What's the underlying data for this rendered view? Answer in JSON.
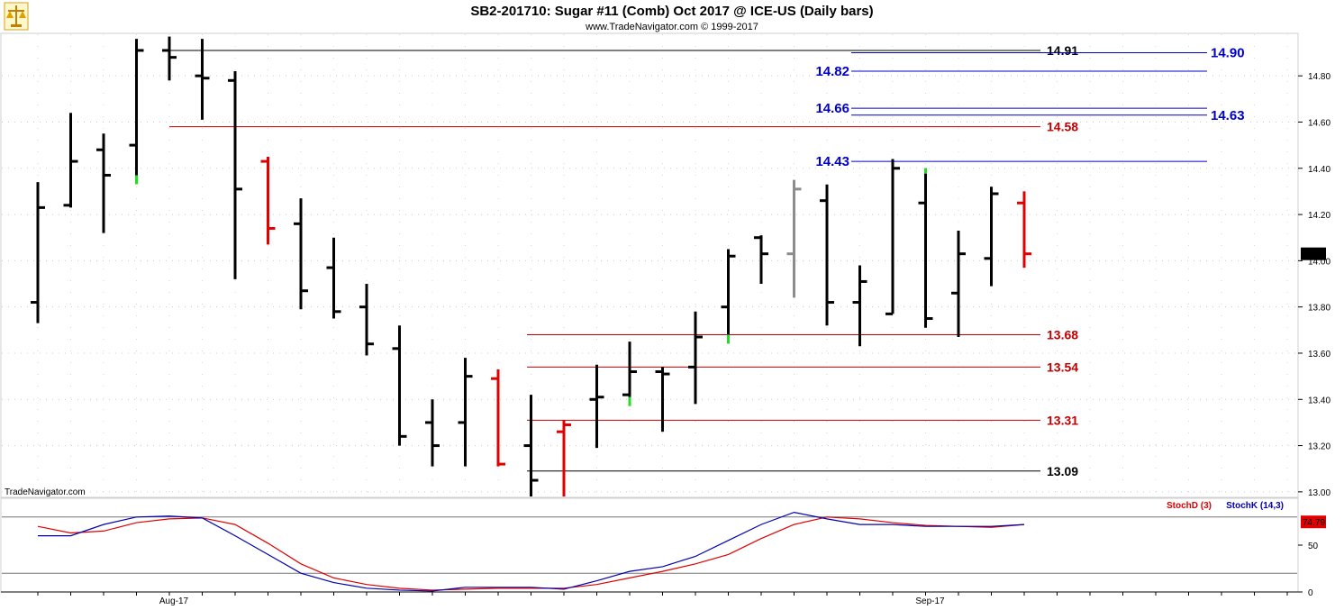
{
  "header": {
    "title": "SB2-201710:  Sugar #11 (Comb) Oct 2017 @ ICE-US  (Daily bars)",
    "subtitle": "www.TradeNavigator.com © 1999-2017",
    "watermark": "TradeNavigator.com",
    "logo_icon": "scale-icon"
  },
  "colors": {
    "bar_up": "#000000",
    "bar_down": "#e00000",
    "bar_gray": "#8c8c8c",
    "tick_green": "#22dd22",
    "level_black": "#000000",
    "level_red": "#c00000",
    "level_blue": "#0000cc",
    "stoch_d": "#e00000",
    "stoch_k": "#0000b0"
  },
  "chart_data": {
    "type": "ohlc",
    "x_axis": {
      "labels": [
        "Aug-17",
        "Sep-17"
      ],
      "label_bar_index": [
        4,
        27
      ]
    },
    "y_axis": {
      "ylim": [
        12.98,
        14.98
      ],
      "ticks": [
        "14.80",
        "14.60",
        "14.40",
        "14.20",
        "14.00",
        "13.80",
        "13.60",
        "13.40",
        "13.20",
        "13.00"
      ]
    },
    "last_price_label": "14.03",
    "bars": [
      {
        "o": 13.82,
        "h": 14.34,
        "l": 13.73,
        "c": 14.23,
        "color": "black"
      },
      {
        "o": 14.24,
        "h": 14.64,
        "l": 14.23,
        "c": 14.43,
        "color": "black"
      },
      {
        "o": 14.48,
        "h": 14.55,
        "l": 14.12,
        "c": 14.37,
        "color": "black"
      },
      {
        "o": 14.5,
        "h": 14.96,
        "l": 14.37,
        "c": 14.91,
        "color": "black",
        "green_low": true
      },
      {
        "o": 14.91,
        "h": 14.97,
        "l": 14.78,
        "c": 14.88,
        "color": "black"
      },
      {
        "o": 14.8,
        "h": 14.96,
        "l": 14.61,
        "c": 14.79,
        "color": "black"
      },
      {
        "o": 14.78,
        "h": 14.82,
        "l": 13.92,
        "c": 14.31,
        "color": "black"
      },
      {
        "o": 14.43,
        "h": 14.45,
        "l": 14.07,
        "c": 14.14,
        "color": "red"
      },
      {
        "o": 14.16,
        "h": 14.27,
        "l": 13.79,
        "c": 13.87,
        "color": "black"
      },
      {
        "o": 13.97,
        "h": 14.1,
        "l": 13.75,
        "c": 13.78,
        "color": "black"
      },
      {
        "o": 13.8,
        "h": 13.9,
        "l": 13.59,
        "c": 13.64,
        "color": "black"
      },
      {
        "o": 13.62,
        "h": 13.72,
        "l": 13.2,
        "c": 13.24,
        "color": "black"
      },
      {
        "o": 13.3,
        "h": 13.4,
        "l": 13.11,
        "c": 13.2,
        "color": "black"
      },
      {
        "o": 13.3,
        "h": 13.58,
        "l": 13.11,
        "c": 13.5,
        "color": "black"
      },
      {
        "o": 13.49,
        "h": 13.53,
        "l": 13.11,
        "c": 13.12,
        "color": "red"
      },
      {
        "o": 13.2,
        "h": 13.42,
        "l": 12.98,
        "c": 13.05,
        "color": "black"
      },
      {
        "o": 13.26,
        "h": 13.31,
        "l": 12.98,
        "c": 13.29,
        "color": "red"
      },
      {
        "o": 13.4,
        "h": 13.55,
        "l": 13.19,
        "c": 13.41,
        "color": "black"
      },
      {
        "o": 13.42,
        "h": 13.65,
        "l": 13.41,
        "c": 13.52,
        "color": "black",
        "green_low": true
      },
      {
        "o": 13.52,
        "h": 13.54,
        "l": 13.26,
        "c": 13.51,
        "color": "black"
      },
      {
        "o": 13.54,
        "h": 13.78,
        "l": 13.38,
        "c": 13.67,
        "color": "black"
      },
      {
        "o": 13.8,
        "h": 14.05,
        "l": 13.68,
        "c": 14.02,
        "color": "black",
        "green_low": true
      },
      {
        "o": 14.1,
        "h": 14.11,
        "l": 13.9,
        "c": 14.03,
        "color": "black"
      },
      {
        "o": 14.03,
        "h": 14.35,
        "l": 13.84,
        "c": 14.31,
        "color": "gray"
      },
      {
        "o": 14.26,
        "h": 14.33,
        "l": 13.72,
        "c": 13.82,
        "color": "black"
      },
      {
        "o": 13.82,
        "h": 13.98,
        "l": 13.63,
        "c": 13.91,
        "color": "black"
      },
      {
        "o": 13.77,
        "h": 14.44,
        "l": 13.77,
        "c": 14.4,
        "color": "black"
      },
      {
        "o": 14.25,
        "h": 14.4,
        "l": 13.71,
        "c": 13.75,
        "color": "black",
        "green_high": true
      },
      {
        "o": 13.86,
        "h": 14.13,
        "l": 13.67,
        "c": 14.03,
        "color": "black"
      },
      {
        "o": 14.01,
        "h": 14.32,
        "l": 13.89,
        "c": 14.29,
        "color": "black"
      },
      {
        "o": 14.25,
        "h": 14.3,
        "l": 13.97,
        "c": 14.03,
        "color": "red"
      }
    ],
    "levels": [
      {
        "label": "14.91",
        "value": 14.91,
        "color": "black",
        "label_side": "right"
      },
      {
        "label": "14.90",
        "value": 14.9,
        "color": "blue",
        "label_side": "far-right"
      },
      {
        "label": "14.82",
        "value": 14.82,
        "color": "blue",
        "label_side": "left"
      },
      {
        "label": "14.66",
        "value": 14.66,
        "color": "blue",
        "label_side": "left"
      },
      {
        "label": "14.63",
        "value": 14.63,
        "color": "blue",
        "label_side": "far-right"
      },
      {
        "label": "14.58",
        "value": 14.58,
        "color": "red",
        "label_side": "right"
      },
      {
        "label": "14.43",
        "value": 14.43,
        "color": "blue",
        "label_side": "left"
      },
      {
        "label": "13.68",
        "value": 13.68,
        "color": "red",
        "label_side": "right"
      },
      {
        "label": "13.54",
        "value": 13.54,
        "color": "red",
        "label_side": "right"
      },
      {
        "label": "13.31",
        "value": 13.31,
        "color": "red",
        "label_side": "right"
      },
      {
        "label": "13.09",
        "value": 13.09,
        "color": "black",
        "label_side": "right"
      }
    ],
    "stochastic": {
      "legend_d": "StochD (3)",
      "legend_k": "StochK (14,3)",
      "last_value_label": "74.79",
      "ylim": [
        0,
        100
      ],
      "ticks": [
        "50",
        "0"
      ],
      "reference_lines": [
        80,
        20
      ],
      "k": [
        60,
        60,
        72,
        80,
        81,
        79,
        60,
        40,
        20,
        10,
        4,
        2,
        1,
        5,
        5,
        5,
        3,
        12,
        22,
        27,
        38,
        55,
        72,
        85,
        78,
        72,
        72,
        70,
        70,
        70,
        72
      ],
      "d": [
        70,
        63,
        65,
        74,
        78,
        79,
        72,
        52,
        30,
        15,
        8,
        4,
        2,
        3,
        4,
        4,
        4,
        8,
        15,
        22,
        30,
        40,
        57,
        72,
        80,
        78,
        74,
        71,
        70,
        69,
        72
      ]
    }
  }
}
